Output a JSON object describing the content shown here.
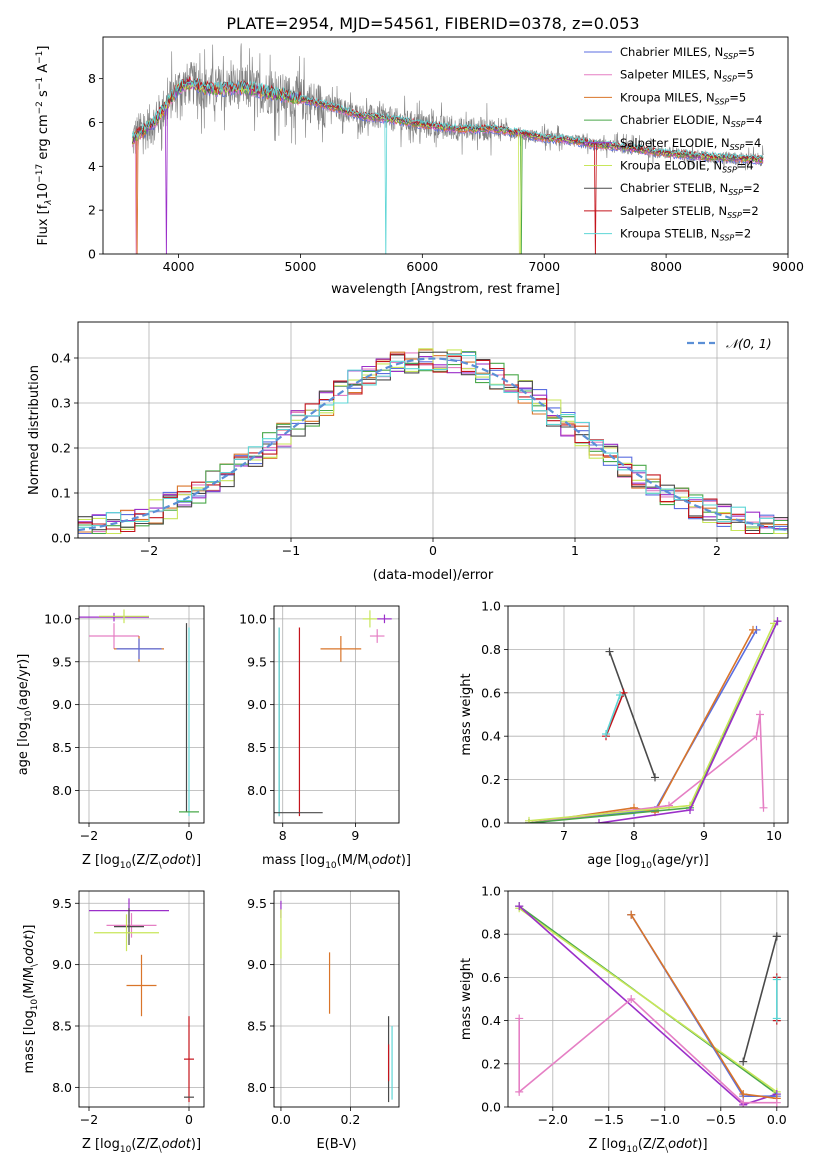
{
  "figure": {
    "title": "PLATE=2954, MJD=54561, FIBERID=0378, z=0.053"
  },
  "colors": {
    "Chabrier MILES": "#5b6ee0",
    "Salpeter MILES": "#e57fc4",
    "Kroupa MILES": "#d9752a",
    "Chabrier ELODIE": "#4aa84a",
    "Salpeter ELODIE": "#9b2fc9",
    "Kroupa ELODIE": "#c8e65a",
    "Chabrier STELIB": "#4a4a4a",
    "Salpeter STELIB": "#c4141c",
    "Kroupa STELIB": "#5ed6d6",
    "data": "#808080",
    "gaussian": "#5b8fd6"
  },
  "chart_data": [
    {
      "id": "spectrum",
      "type": "line",
      "xlabel": "wavelength [Angstrom, rest frame]",
      "ylabel": "Flux [f$_\\lambda$10$^{-17}$ erg cm$^{-2}$ s$^{-1}$ A$^{-1}$]",
      "ylabel_parts": [
        "Flux [f",
        "λ",
        "10",
        "−17",
        " erg cm",
        "−2",
        " s",
        "−1",
        " A",
        "−1",
        "]"
      ],
      "xlim": [
        3380,
        9000
      ],
      "ylim": [
        0,
        9.9
      ],
      "xticks": [
        4000,
        5000,
        6000,
        7000,
        8000,
        9000
      ],
      "yticks": [
        0,
        2,
        4,
        6,
        8
      ],
      "legend_position": "upper-right",
      "legend": [
        {
          "model": "Chabrier MILES",
          "n": "5"
        },
        {
          "model": "Salpeter MILES",
          "n": "5"
        },
        {
          "model": "Kroupa MILES",
          "n": "5"
        },
        {
          "model": "Chabrier ELODIE",
          "n": "4"
        },
        {
          "model": "Salpeter ELODIE",
          "n": "4"
        },
        {
          "model": "Kroupa ELODIE",
          "n": "4"
        },
        {
          "model": "Chabrier STELIB",
          "n": "2"
        },
        {
          "model": "Salpeter STELIB",
          "n": "2"
        },
        {
          "model": "Kroupa STELIB",
          "n": "2"
        }
      ],
      "legend_sub": "SSP",
      "legend_prefix": "N",
      "continuum": {
        "x": [
          3620,
          3700,
          3800,
          3900,
          4000,
          4100,
          4200,
          4300,
          4500,
          4700,
          4900,
          5200,
          5500,
          5800,
          6000,
          6300,
          6600,
          6800,
          7000,
          7200,
          7400,
          7600,
          8000,
          8400,
          8800
        ],
        "y": [
          5.2,
          5.6,
          6.0,
          6.8,
          7.6,
          7.8,
          7.6,
          7.5,
          7.6,
          7.4,
          7.2,
          6.8,
          6.3,
          6.1,
          5.9,
          5.7,
          5.7,
          5.5,
          5.3,
          5.2,
          5.0,
          4.9,
          4.6,
          4.4,
          4.3
        ]
      },
      "data_noise_amplitude": 2.0
    },
    {
      "id": "residuals",
      "type": "histogram",
      "xlabel": "(data-model)/error",
      "ylabel": "Normed distribution",
      "xlim": [
        -2.5,
        2.5
      ],
      "ylim": [
        0,
        0.48
      ],
      "xticks": [
        -2,
        -1,
        0,
        1,
        2
      ],
      "yticks": [
        0.0,
        0.1,
        0.2,
        0.3,
        0.4
      ],
      "legend_position": "upper-right",
      "legend": "𝒩(0, 1)",
      "bin_width": 0.1,
      "gaussian": {
        "mean": 0,
        "sigma": 1
      }
    },
    {
      "id": "age-vs-Z",
      "type": "scatter",
      "xlabel": "Z [log$_{10}$(Z/Z$_\\odot$)]",
      "ylabel": "age  [log$_{10}$(age/yr)]",
      "xlim": [
        -2.2,
        0.3
      ],
      "ylim": [
        7.62,
        10.15
      ],
      "xticks": [
        -2,
        0
      ],
      "yticks": [
        8.0,
        8.5,
        9.0,
        9.5,
        10.0
      ],
      "points": [
        {
          "model": "Salpeter ELODIE",
          "x": -1.5,
          "y": 10.02,
          "xerr": 0.7,
          "yerr": 0.05
        },
        {
          "model": "Kroupa ELODIE",
          "x": -1.3,
          "y": 10.03,
          "xerr": 0.5,
          "yerr": 0.08
        },
        {
          "model": "Salpeter MILES",
          "x": -1.5,
          "y": 9.8,
          "xerr": 0.5,
          "yerr": 0.15
        },
        {
          "model": "Kroupa MILES",
          "x": -1.0,
          "y": 9.65,
          "xerr": 0.5,
          "yerr": 0.15
        },
        {
          "model": "Chabrier MILES",
          "x": -1.0,
          "y": 9.65,
          "xerr": 0.45,
          "yerr": 0.12
        },
        {
          "model": "Chabrier STELIB",
          "x": -0.05,
          "y": 8.85,
          "xerr": 0.0,
          "yerr": 1.1
        },
        {
          "model": "Kroupa STELIB",
          "x": 0.0,
          "y": 8.8,
          "xerr": 0.0,
          "yerr": 1.1
        },
        {
          "model": "Chabrier ELODIE",
          "x": 0.0,
          "y": 7.75,
          "xerr": 0.2,
          "yerr": 0.0
        }
      ]
    },
    {
      "id": "age-vs-mass",
      "type": "scatter",
      "xlabel": "mass [log$_{10}$(M/M$_\\odot$)]",
      "ylabel": "",
      "xlim": [
        7.88,
        9.6
      ],
      "ylim": [
        7.62,
        10.15
      ],
      "xticks": [
        8,
        9
      ],
      "yticks": [
        8.0,
        8.5,
        9.0,
        9.5,
        10.0
      ],
      "points": [
        {
          "model": "Kroupa ELODIE",
          "x": 9.2,
          "y": 10.0,
          "xerr": 0.1,
          "yerr": 0.1
        },
        {
          "model": "Salpeter ELODIE",
          "x": 9.4,
          "y": 10.0,
          "xerr": 0.1,
          "yerr": 0.05
        },
        {
          "model": "Salpeter MILES",
          "x": 9.3,
          "y": 9.8,
          "xerr": 0.1,
          "yerr": 0.08
        },
        {
          "model": "Kroupa MILES",
          "x": 8.8,
          "y": 9.65,
          "xerr": 0.28,
          "yerr": 0.15
        },
        {
          "model": "Salpeter STELIB",
          "x": 8.23,
          "y": 8.8,
          "xerr": 0.0,
          "yerr": 1.1
        },
        {
          "model": "Chabrier STELIB",
          "x": 7.95,
          "y": 8.8,
          "xerr": 0.0,
          "yerr": 1.1
        },
        {
          "model": "Kroupa STELIB",
          "x": 7.95,
          "y": 8.8,
          "xerr": 0.0,
          "yerr": 1.1
        },
        {
          "model": "Chabrier STELIB",
          "x": 8.2,
          "y": 7.74,
          "xerr": 0.35,
          "yerr": 0.0
        }
      ]
    },
    {
      "id": "massweight-vs-age",
      "type": "line",
      "xlabel": "age  [log$_{10}$(age/yr)]",
      "ylabel": "mass weight",
      "xlim": [
        6.2,
        10.2
      ],
      "ylim": [
        0,
        1
      ],
      "xticks": [
        7,
        8,
        9,
        10
      ],
      "yticks": [
        0.0,
        0.2,
        0.4,
        0.6,
        0.8,
        1.0
      ],
      "series": [
        {
          "model": "Chabrier STELIB",
          "x": [
            7.65,
            8.3
          ],
          "y": [
            0.79,
            0.21
          ]
        },
        {
          "model": "Salpeter STELIB",
          "x": [
            7.6,
            7.85
          ],
          "y": [
            0.4,
            0.6
          ]
        },
        {
          "model": "Kroupa STELIB",
          "x": [
            7.6,
            7.8
          ],
          "y": [
            0.41,
            0.59
          ]
        },
        {
          "model": "Chabrier MILES",
          "x": [
            6.5,
            8.0,
            8.3,
            9.75
          ],
          "y": [
            0.0,
            0.05,
            0.06,
            0.89
          ]
        },
        {
          "model": "Kroupa MILES",
          "x": [
            6.5,
            8.0,
            8.3,
            9.7
          ],
          "y": [
            0.0,
            0.07,
            0.05,
            0.89
          ]
        },
        {
          "model": "Salpeter MILES",
          "x": [
            6.5,
            8.5,
            9.75,
            9.8,
            9.85
          ],
          "y": [
            0.0,
            0.08,
            0.4,
            0.5,
            0.07
          ]
        },
        {
          "model": "Chabrier ELODIE",
          "x": [
            6.5,
            8.8,
            10.05
          ],
          "y": [
            0.0,
            0.07,
            0.93
          ]
        },
        {
          "model": "Kroupa ELODIE",
          "x": [
            6.5,
            8.8,
            10.0
          ],
          "y": [
            0.01,
            0.08,
            0.92
          ]
        },
        {
          "model": "Salpeter ELODIE",
          "x": [
            7.5,
            8.8,
            10.05
          ],
          "y": [
            0.0,
            0.06,
            0.93
          ]
        }
      ]
    },
    {
      "id": "mass-vs-Z",
      "type": "scatter",
      "xlabel": "Z [log$_{10}$(Z/Z$_\\odot$)]",
      "ylabel": "mass [log$_{10}$(M/M$_\\odot$)]",
      "xlim": [
        -2.2,
        0.3
      ],
      "ylim": [
        7.84,
        9.6
      ],
      "xticks": [
        -2,
        0
      ],
      "yticks": [
        8.0,
        8.5,
        9.0,
        9.5
      ],
      "points": [
        {
          "model": "Salpeter ELODIE",
          "x": -1.2,
          "y": 9.44,
          "xerr": 0.8,
          "yerr": 0.1
        },
        {
          "model": "Salpeter MILES",
          "x": -1.15,
          "y": 9.32,
          "xerr": 0.5,
          "yerr": 0.1
        },
        {
          "model": "Chabrier STELIB",
          "x": -1.2,
          "y": 9.31,
          "xerr": 0.3,
          "yerr": 0.15
        },
        {
          "model": "Kroupa ELODIE",
          "x": -1.25,
          "y": 9.26,
          "xerr": 0.65,
          "yerr": 0.15
        },
        {
          "model": "Kroupa MILES",
          "x": -0.95,
          "y": 8.83,
          "xerr": 0.3,
          "yerr": 0.25
        },
        {
          "model": "Salpeter STELIB",
          "x": 0.0,
          "y": 8.23,
          "xerr": 0.1,
          "yerr": 0.35
        },
        {
          "model": "Chabrier STELIB",
          "x": 0.0,
          "y": 7.92,
          "xerr": 0.1,
          "yerr": 0.0
        }
      ]
    },
    {
      "id": "mass-vs-EBV",
      "type": "scatter",
      "xlabel": "E(B-V)",
      "ylabel": "",
      "xlim": [
        -0.02,
        0.34
      ],
      "ylim": [
        7.84,
        9.6
      ],
      "xticks": [
        0.0,
        0.2
      ],
      "yticks": [
        8.0,
        8.5,
        9.0,
        9.5
      ],
      "points": [
        {
          "model": "Salpeter ELODIE",
          "x": 0.0,
          "y": 9.45,
          "xerr": 0.0,
          "yerr": 0.07
        },
        {
          "model": "Kroupa ELODIE",
          "x": 0.0,
          "y": 9.25,
          "xerr": 0.0,
          "yerr": 0.2
        },
        {
          "model": "Kroupa MILES",
          "x": 0.14,
          "y": 8.85,
          "xerr": 0.0,
          "yerr": 0.25
        },
        {
          "model": "Chabrier STELIB",
          "x": 0.31,
          "y": 8.23,
          "xerr": 0.0,
          "yerr": 0.35
        },
        {
          "model": "Kroupa STELIB",
          "x": 0.32,
          "y": 8.2,
          "xerr": 0.0,
          "yerr": 0.3
        },
        {
          "model": "Salpeter STELIB",
          "x": 0.31,
          "y": 8.2,
          "xerr": 0.0,
          "yerr": 0.15
        }
      ]
    },
    {
      "id": "massweight-vs-Z",
      "type": "line",
      "xlabel": "Z [log$_{10}$(Z/Z$_\\odot$)]",
      "ylabel": "mass weight",
      "xlim": [
        -2.4,
        0.1
      ],
      "ylim": [
        0,
        1
      ],
      "xticks": [
        -2.0,
        -1.5,
        -1.0,
        -0.5,
        0.0
      ],
      "yticks": [
        0.0,
        0.2,
        0.4,
        0.6,
        0.8,
        1.0
      ],
      "series": [
        {
          "model": "Chabrier ELODIE",
          "x": [
            -2.3,
            0.0
          ],
          "y": [
            0.93,
            0.06
          ]
        },
        {
          "model": "Kroupa ELODIE",
          "x": [
            -2.3,
            0.0
          ],
          "y": [
            0.92,
            0.07
          ]
        },
        {
          "model": "Salpeter ELODIE",
          "x": [
            -2.3,
            -0.3,
            0.0
          ],
          "y": [
            0.93,
            0.01,
            0.06
          ]
        },
        {
          "model": "Chabrier MILES",
          "x": [
            -1.3,
            -0.3,
            0.0
          ],
          "y": [
            0.89,
            0.05,
            0.05
          ]
        },
        {
          "model": "Kroupa MILES",
          "x": [
            -1.3,
            -0.3,
            0.0
          ],
          "y": [
            0.89,
            0.06,
            0.04
          ]
        },
        {
          "model": "Salpeter MILES",
          "x": [
            -2.3,
            -2.3,
            -1.3,
            -0.3,
            0.0
          ],
          "y": [
            0.41,
            0.07,
            0.5,
            0.02,
            0.02
          ]
        },
        {
          "model": "Chabrier STELIB",
          "x": [
            -0.3,
            0.0,
            0.0
          ],
          "y": [
            0.21,
            0.79,
            0.79
          ]
        },
        {
          "model": "Salpeter STELIB",
          "x": [
            0.0,
            0.0
          ],
          "y": [
            0.6,
            0.4
          ]
        },
        {
          "model": "Kroupa STELIB",
          "x": [
            0.0,
            0.0
          ],
          "y": [
            0.59,
            0.41
          ]
        }
      ]
    }
  ]
}
